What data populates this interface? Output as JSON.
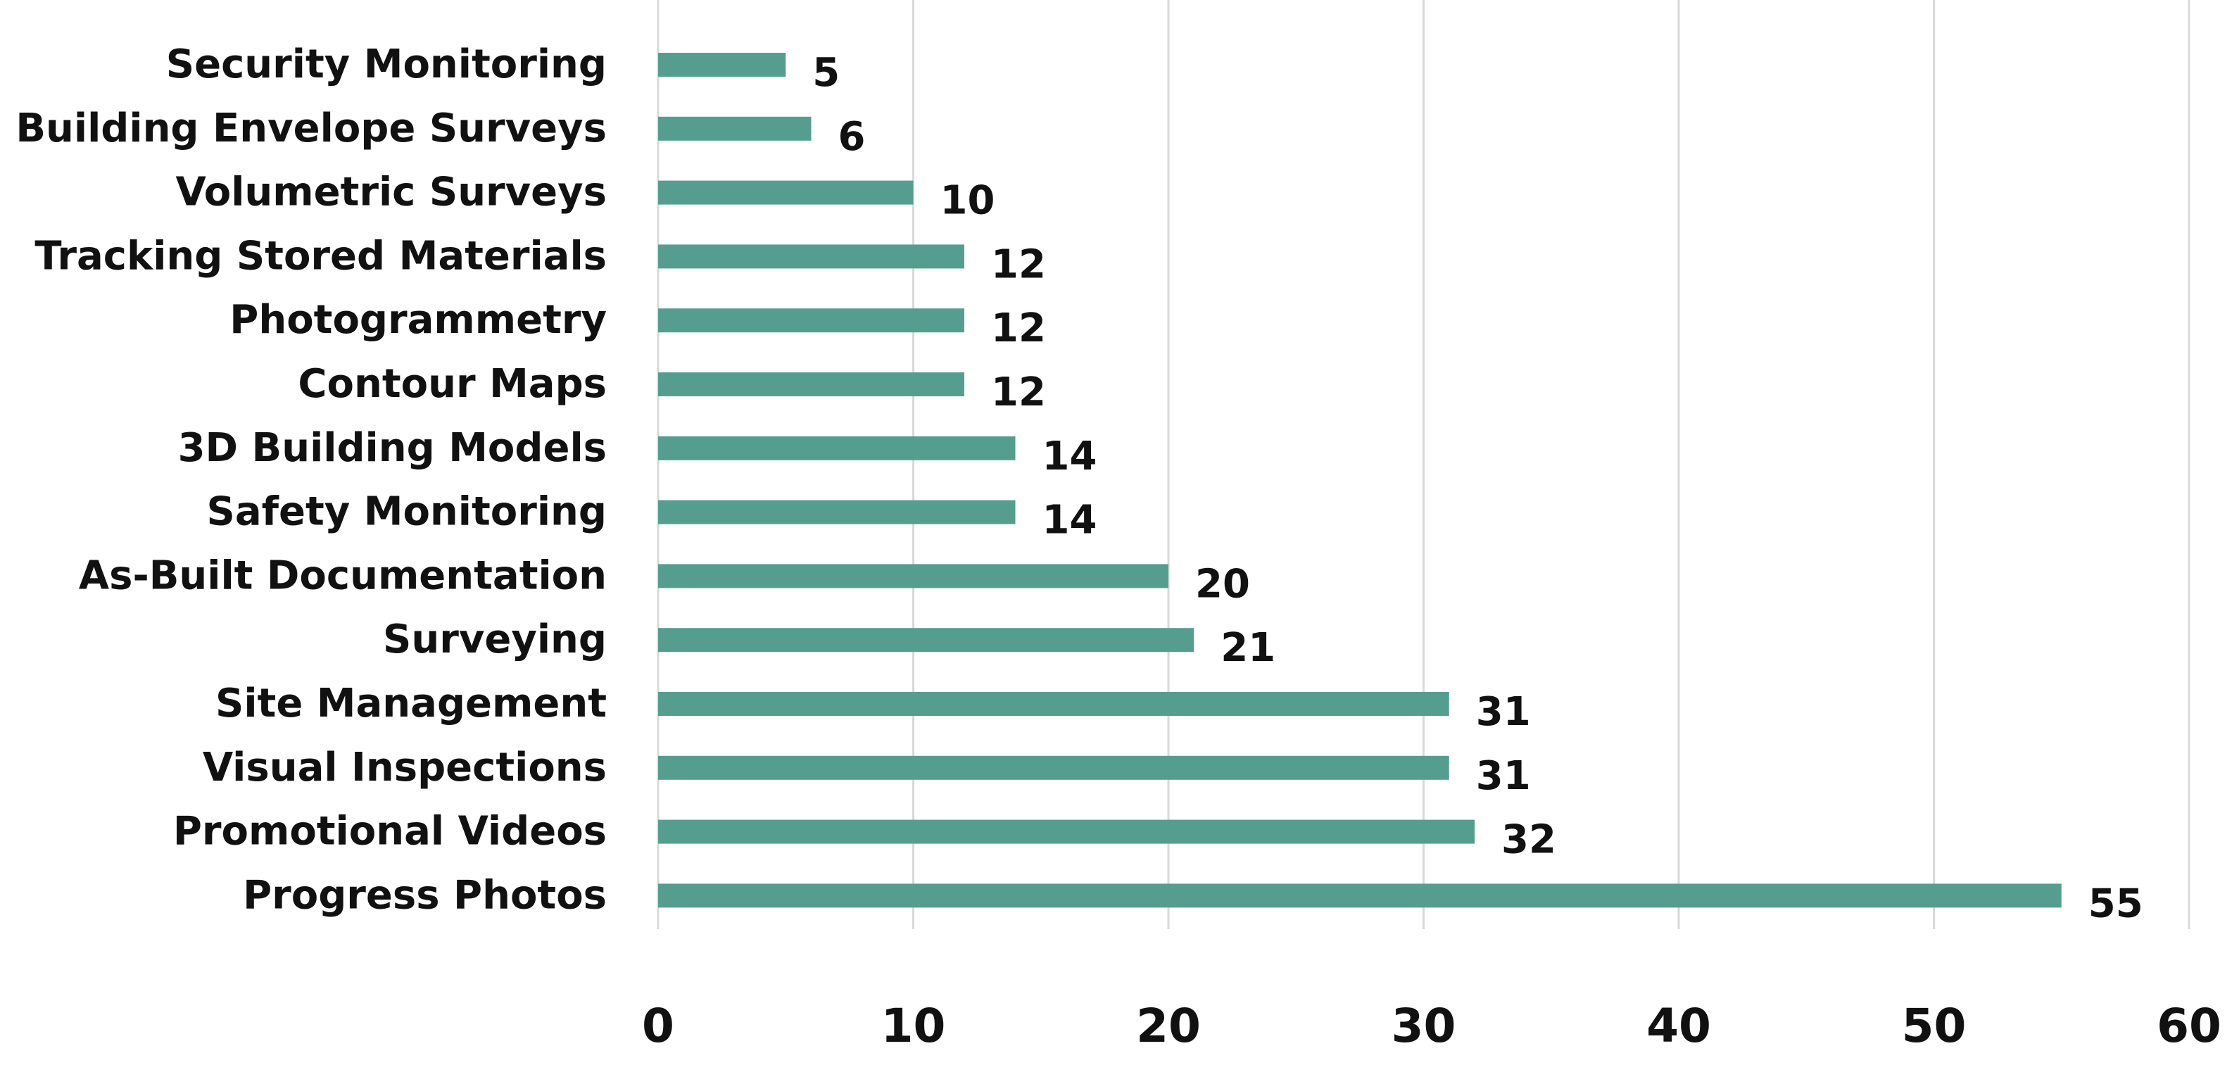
{
  "chart_data": {
    "type": "bar",
    "orientation": "horizontal",
    "title": "",
    "xlabel": "",
    "ylabel": "",
    "categories": [
      "Security Monitoring",
      "Building Envelope Surveys",
      "Volumetric Surveys",
      "Tracking Stored Materials",
      "Photogrammetry",
      "Contour Maps",
      "3D Building Models",
      "Safety Monitoring",
      "As-Built Documentation",
      "Surveying",
      "Site Management",
      "Visual Inspections",
      "Promotional Videos",
      "Progress Photos"
    ],
    "values": [
      5,
      6,
      10,
      12,
      12,
      12,
      14,
      14,
      20,
      21,
      31,
      31,
      32,
      55
    ],
    "xlim": [
      0,
      60
    ],
    "xticks": [
      0,
      10,
      20,
      30,
      40,
      50,
      60
    ],
    "grid": "vertical",
    "legend": "none",
    "bar_color": "#559e8f"
  }
}
